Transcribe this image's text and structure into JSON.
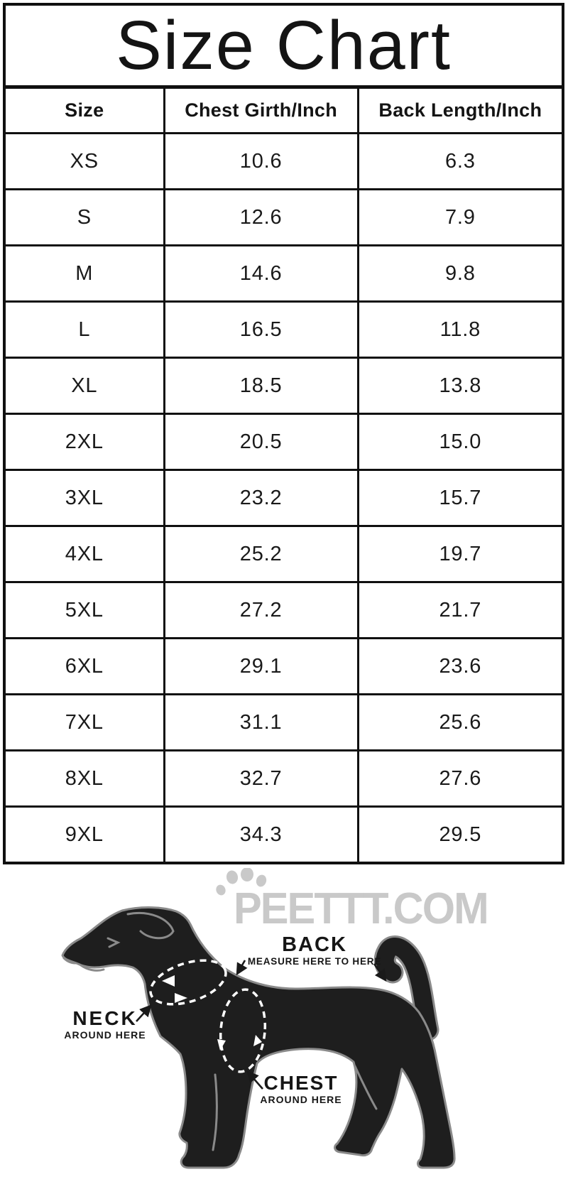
{
  "title": "Size Chart",
  "table": {
    "headers": [
      "Size",
      "Chest Girth/Inch",
      "Back Length/Inch"
    ],
    "rows": [
      [
        "XS",
        "10.6",
        "6.3"
      ],
      [
        "S",
        "12.6",
        "7.9"
      ],
      [
        "M",
        "14.6",
        "9.8"
      ],
      [
        "L",
        "16.5",
        "11.8"
      ],
      [
        "XL",
        "18.5",
        "13.8"
      ],
      [
        "2XL",
        "20.5",
        "15.0"
      ],
      [
        "3XL",
        "23.2",
        "15.7"
      ],
      [
        "4XL",
        "25.2",
        "19.7"
      ],
      [
        "5XL",
        "27.2",
        "21.7"
      ],
      [
        "6XL",
        "29.1",
        "23.6"
      ],
      [
        "7XL",
        "31.1",
        "25.6"
      ],
      [
        "8XL",
        "32.7",
        "27.6"
      ],
      [
        "9XL",
        "34.3",
        "29.5"
      ]
    ]
  },
  "watermark": {
    "text": "PEETTT.COM",
    "icon": "paw-print-icon",
    "color": "#c9c9c9"
  },
  "diagram": {
    "back": {
      "label": "BACK",
      "sub": "MEASURE HERE TO HERE"
    },
    "neck": {
      "label": "NECK",
      "sub": "AROUND HERE"
    },
    "chest": {
      "label": "CHEST",
      "sub": "AROUND HERE"
    }
  },
  "colors": {
    "text": "#1a1a1a",
    "table_border": "#101010",
    "dog_body": "#1e1e1e",
    "dog_outline": "#8a8a8a",
    "dash_line": "#ffffff",
    "watermark": "#c9c9c9"
  },
  "chart_data": {
    "type": "table",
    "title": "Size Chart",
    "columns": [
      "Size",
      "Chest Girth/Inch",
      "Back Length/Inch"
    ],
    "rows": [
      [
        "XS",
        10.6,
        6.3
      ],
      [
        "S",
        12.6,
        7.9
      ],
      [
        "M",
        14.6,
        9.8
      ],
      [
        "L",
        16.5,
        11.8
      ],
      [
        "XL",
        18.5,
        13.8
      ],
      [
        "2XL",
        20.5,
        15.0
      ],
      [
        "3XL",
        23.2,
        15.7
      ],
      [
        "4XL",
        25.2,
        19.7
      ],
      [
        "5XL",
        27.2,
        21.7
      ],
      [
        "6XL",
        29.1,
        23.6
      ],
      [
        "7XL",
        31.1,
        25.6
      ],
      [
        "8XL",
        32.7,
        27.6
      ],
      [
        "9XL",
        34.3,
        29.5
      ]
    ]
  }
}
